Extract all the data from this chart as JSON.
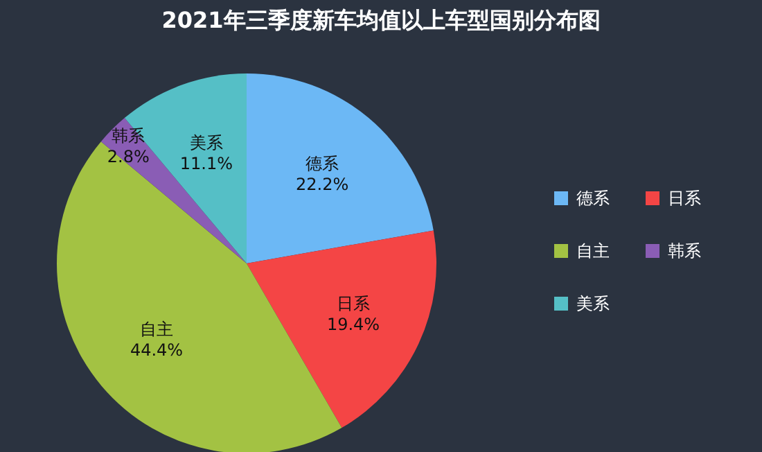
{
  "chart_data": {
    "type": "pie",
    "title": "2021年三季度新车均值以上车型国别分布图",
    "categories": [
      "德系",
      "日系",
      "自主",
      "韩系",
      "美系"
    ],
    "values": [
      22.2,
      19.4,
      44.4,
      2.8,
      11.1
    ],
    "colors": [
      "#6cb8f5",
      "#f44545",
      "#a3c243",
      "#8a5db5",
      "#55bfc6"
    ],
    "value_labels": [
      "22.2%",
      "19.4%",
      "44.4%",
      "2.8%",
      "11.1%"
    ],
    "legend": "right"
  }
}
